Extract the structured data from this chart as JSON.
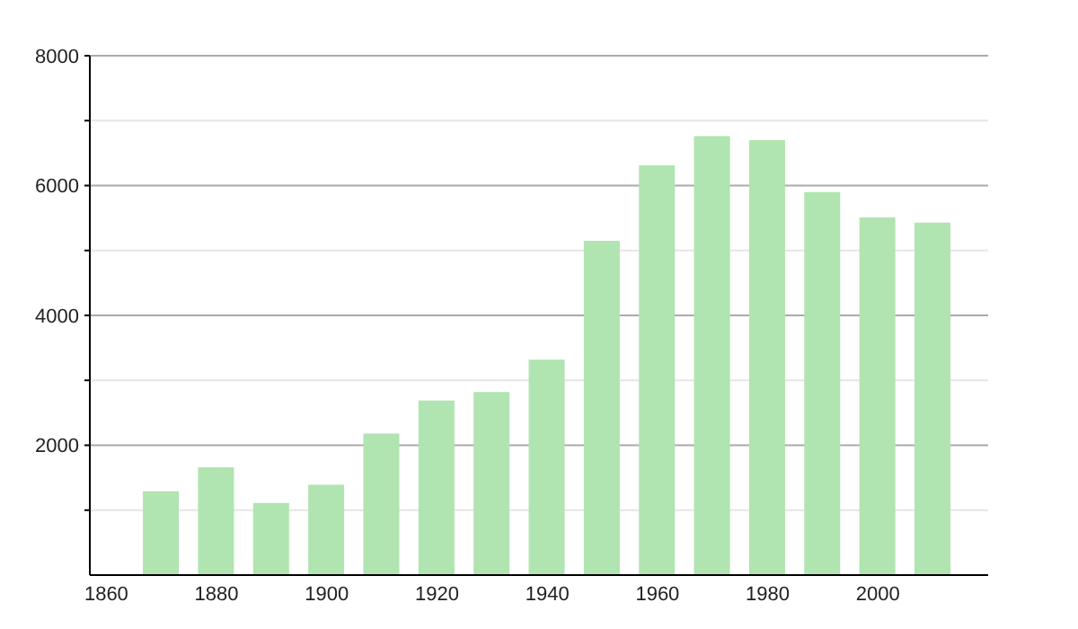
{
  "chart_data": {
    "type": "bar",
    "x": [
      1870,
      1880,
      1890,
      1900,
      1910,
      1920,
      1930,
      1940,
      1950,
      1960,
      1970,
      1980,
      1990,
      2000,
      2010
    ],
    "values": [
      1290,
      1660,
      1110,
      1390,
      2180,
      2690,
      2820,
      3320,
      5150,
      6310,
      6760,
      6700,
      5900,
      5510,
      5430
    ],
    "color": "#b0e4b0",
    "xlim": [
      1857,
      2020
    ],
    "xticks": [
      1860,
      1880,
      1900,
      1920,
      1940,
      1960,
      1980,
      2000
    ],
    "ylim": [
      0,
      8000
    ],
    "yticks": [
      {
        "value": 1000,
        "label": null
      },
      2000,
      {
        "value": 3000,
        "label": null
      },
      4000,
      {
        "value": 5000,
        "label": null
      },
      6000,
      {
        "value": 7000,
        "label": null
      },
      8000
    ],
    "grid": "y"
  }
}
